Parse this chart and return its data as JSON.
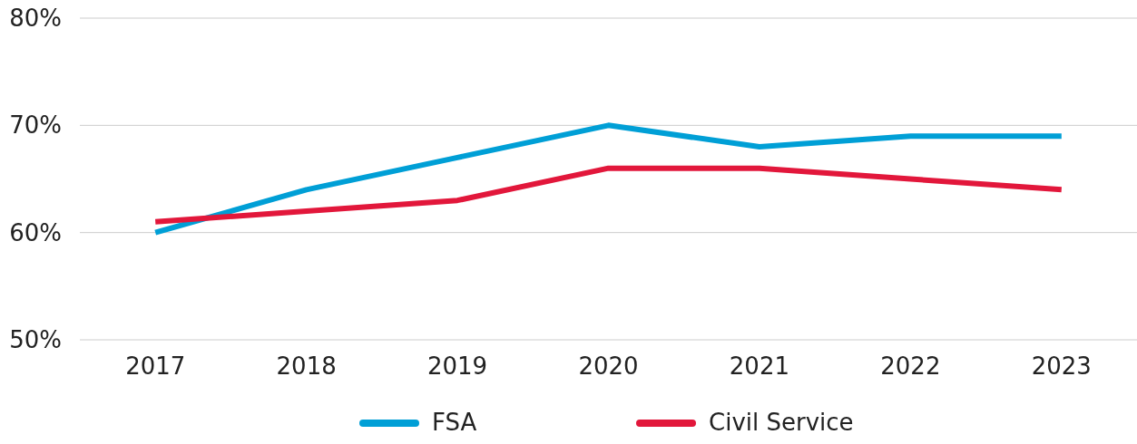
{
  "chart_data": {
    "type": "line",
    "categories": [
      "2017",
      "2018",
      "2019",
      "2020",
      "2021",
      "2022",
      "2023"
    ],
    "series": [
      {
        "name": "FSA",
        "color": "#009fd6",
        "values": [
          60,
          64,
          67,
          70,
          68,
          69,
          69
        ]
      },
      {
        "name": "Civil Service",
        "color": "#e2173b",
        "values": [
          61,
          62,
          63,
          66,
          66,
          65,
          64
        ]
      }
    ],
    "ylim": [
      50,
      80
    ],
    "yticks": [
      {
        "value": 50,
        "label": "50%"
      },
      {
        "value": 60,
        "label": "60%"
      },
      {
        "value": 70,
        "label": "70%"
      },
      {
        "value": 80,
        "label": "80%"
      }
    ],
    "grid": "y",
    "legend": "bottom",
    "marker": "none",
    "line_style": "solid"
  }
}
